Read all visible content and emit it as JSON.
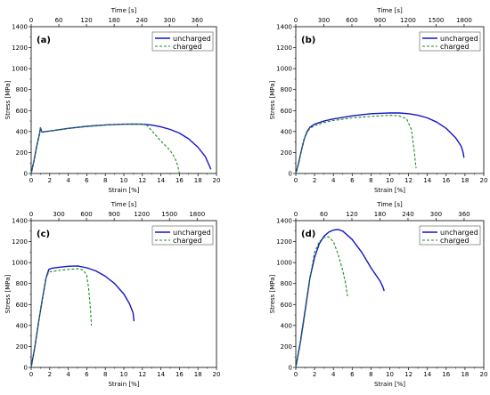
{
  "colors": {
    "uncharged": "#1414c8",
    "charged": "#1f8a1f",
    "axis": "#000000",
    "legend_border": "#555555"
  },
  "chart_data": [
    {
      "type": "line",
      "panel_label": "(a)",
      "xlabel": "Strain [%]",
      "ylabel": "Stress [MPa]",
      "top_label": "Time [s]",
      "xlim": [
        0,
        20
      ],
      "ylim": [
        0,
        1400
      ],
      "x_ticks": [
        "0",
        "2",
        "4",
        "6",
        "8",
        "10",
        "12",
        "14",
        "16",
        "18",
        "20"
      ],
      "y_ticks": [
        "0",
        "200",
        "400",
        "600",
        "800",
        "1000",
        "1200",
        "1400"
      ],
      "top_ticks": [
        "0",
        "60",
        "120",
        "180",
        "240",
        "300",
        "360"
      ],
      "top_max": 402,
      "grid": false,
      "legend_position": "top-right",
      "series": [
        {
          "name": "uncharged",
          "style": "solid",
          "x": [
            0,
            0.3,
            0.6,
            0.9,
            1.0,
            1.15,
            1.5,
            2,
            4,
            6,
            8,
            10,
            11,
            12,
            13,
            14,
            15,
            16,
            17,
            18,
            18.8,
            19.2,
            19.35,
            19.4
          ],
          "y": [
            0,
            120,
            260,
            380,
            435,
            395,
            400,
            405,
            430,
            450,
            463,
            470,
            472,
            470,
            462,
            445,
            420,
            385,
            330,
            250,
            160,
            80,
            50,
            40
          ]
        },
        {
          "name": "charged",
          "style": "dashed",
          "x": [
            0,
            0.3,
            0.6,
            0.9,
            1.0,
            1.15,
            1.5,
            2,
            4,
            6,
            8,
            10,
            12,
            12.5,
            13,
            14,
            15,
            15.5,
            15.8,
            16
          ],
          "y": [
            0,
            120,
            260,
            380,
            435,
            395,
            400,
            405,
            430,
            450,
            463,
            470,
            470,
            460,
            410,
            310,
            220,
            150,
            80,
            0
          ]
        }
      ]
    },
    {
      "type": "line",
      "panel_label": "(b)",
      "xlabel": "Strain [%]",
      "ylabel": "Stress [MPa]",
      "top_label": "Time [s]",
      "xlim": [
        0,
        20
      ],
      "ylim": [
        0,
        1400
      ],
      "x_ticks": [
        "0",
        "2",
        "4",
        "6",
        "8",
        "10",
        "12",
        "14",
        "16",
        "18",
        "20"
      ],
      "y_ticks": [
        "0",
        "200",
        "400",
        "600",
        "800",
        "1000",
        "1200",
        "1400"
      ],
      "top_ticks": [
        "0",
        "300",
        "600",
        "900",
        "1200",
        "1500",
        "1800"
      ],
      "top_max": 2010,
      "grid": false,
      "legend_position": "top-right",
      "series": [
        {
          "name": "uncharged",
          "style": "solid",
          "x": [
            0,
            0.3,
            0.6,
            0.9,
            1.2,
            1.5,
            2,
            3,
            4,
            6,
            8,
            10,
            11,
            12,
            13,
            14,
            15,
            16,
            17,
            17.6,
            17.8,
            17.9
          ],
          "y": [
            0,
            100,
            220,
            330,
            400,
            440,
            470,
            500,
            520,
            550,
            570,
            578,
            577,
            570,
            555,
            530,
            490,
            430,
            340,
            260,
            200,
            150
          ]
        },
        {
          "name": "charged",
          "style": "dashed",
          "x": [
            0,
            0.3,
            0.6,
            0.9,
            1.2,
            1.5,
            2,
            3,
            4,
            6,
            8,
            10,
            11,
            11.8,
            12.3,
            12.6,
            12.8
          ],
          "y": [
            0,
            100,
            220,
            330,
            390,
            430,
            455,
            485,
            505,
            530,
            545,
            555,
            550,
            520,
            420,
            220,
            50
          ]
        }
      ]
    },
    {
      "type": "line",
      "panel_label": "(c)",
      "xlabel": "Strain [%]",
      "ylabel": "Stress [MPa]",
      "top_label": "Time [s]",
      "xlim": [
        0,
        20
      ],
      "ylim": [
        0,
        1400
      ],
      "x_ticks": [
        "0",
        "2",
        "4",
        "6",
        "8",
        "10",
        "12",
        "14",
        "16",
        "18",
        "20"
      ],
      "y_ticks": [
        "0",
        "200",
        "400",
        "600",
        "800",
        "1000",
        "1200",
        "1400"
      ],
      "top_ticks": [
        "0",
        "300",
        "600",
        "900",
        "1200",
        "1500",
        "1800"
      ],
      "top_max": 2010,
      "grid": false,
      "legend_position": "top-right",
      "series": [
        {
          "name": "uncharged",
          "style": "solid",
          "x": [
            0,
            0.4,
            0.8,
            1.2,
            1.6,
            1.9,
            2.2,
            3,
            4,
            5,
            6,
            7,
            8,
            9,
            10,
            10.6,
            11,
            11.1
          ],
          "y": [
            0,
            200,
            430,
            650,
            850,
            935,
            945,
            955,
            965,
            968,
            950,
            920,
            870,
            800,
            700,
            610,
            520,
            440
          ]
        },
        {
          "name": "charged",
          "style": "dashed",
          "x": [
            0,
            0.4,
            0.8,
            1.2,
            1.6,
            1.9,
            2.2,
            3,
            4,
            5,
            5.6,
            6,
            6.2,
            6.4,
            6.5
          ],
          "y": [
            0,
            200,
            430,
            650,
            850,
            910,
            915,
            925,
            935,
            940,
            930,
            880,
            750,
            550,
            400
          ]
        }
      ]
    },
    {
      "type": "line",
      "panel_label": "(d)",
      "xlabel": "Strain [%]",
      "ylabel": "Stress [MPa]",
      "top_label": "Time [s]",
      "xlim": [
        0,
        20
      ],
      "ylim": [
        0,
        1400
      ],
      "x_ticks": [
        "0",
        "2",
        "4",
        "6",
        "8",
        "10",
        "12",
        "14",
        "16",
        "18",
        "20"
      ],
      "y_ticks": [
        "0",
        "200",
        "400",
        "600",
        "800",
        "1000",
        "1200",
        "1400"
      ],
      "top_ticks": [
        "0",
        "60",
        "120",
        "180",
        "240",
        "300",
        "360"
      ],
      "top_max": 402,
      "grid": false,
      "legend_position": "top-right",
      "series": [
        {
          "name": "uncharged",
          "style": "solid",
          "x": [
            0,
            0.5,
            1,
            1.5,
            2,
            2.5,
            3,
            3.5,
            4,
            4.5,
            5,
            6,
            7,
            8,
            9,
            9.3,
            9.4
          ],
          "y": [
            0,
            250,
            550,
            850,
            1050,
            1180,
            1250,
            1290,
            1310,
            1315,
            1300,
            1220,
            1100,
            950,
            820,
            760,
            730
          ]
        },
        {
          "name": "charged",
          "style": "dashed",
          "x": [
            0,
            0.4,
            0.8,
            1.2,
            1.6,
            2,
            2.5,
            3,
            3.5,
            4,
            4.5,
            5,
            5.3,
            5.5
          ],
          "y": [
            0,
            180,
            400,
            650,
            900,
            1100,
            1200,
            1240,
            1245,
            1200,
            1080,
            920,
            800,
            680
          ]
        }
      ]
    }
  ]
}
